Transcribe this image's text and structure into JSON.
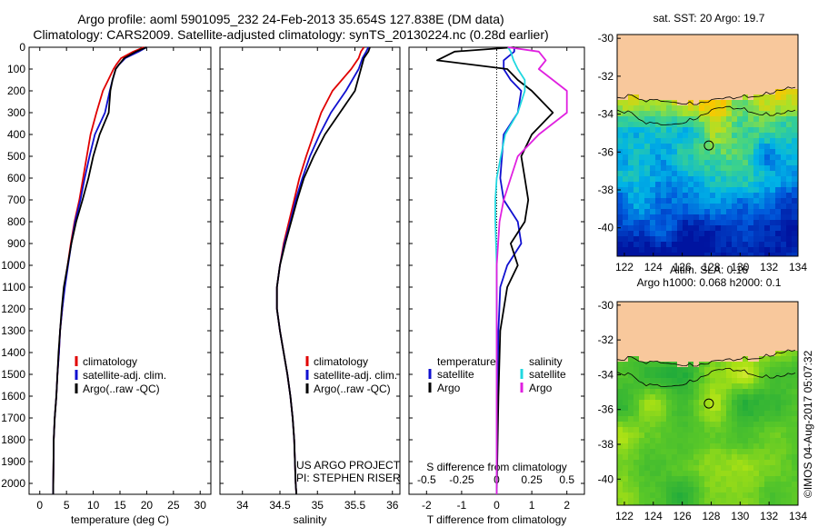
{
  "header": {
    "line1": "Argo profile: aoml 5901095_232 24-Feb-2013 35.654S 127.838E (DM data)",
    "line2": "Climatology: CARS2009. Satellite-adjusted climatology: synTS_20130224.nc (0.28d earlier)"
  },
  "colors": {
    "climatology": "#e00000",
    "satellite": "#1010d0",
    "argo": "#000000",
    "sal_satellite": "#20d8e0",
    "sal_argo": "#e020e0",
    "land": "#f8c89c"
  },
  "legend_profile": [
    "climatology",
    "satellite-adj. clim.",
    "Argo(..raw -QC)"
  ],
  "legend_diff": {
    "temp_title": "temperature",
    "sal_title": "salinity",
    "temp_items": [
      "satellite",
      "Argo"
    ],
    "sal_items": [
      "satellite",
      "Argo"
    ]
  },
  "credit": {
    "line1": "US ARGO PROJECT",
    "line2": "PI: STEPHEN RISER"
  },
  "watermark": "©IMOS 04-Aug-2017 05:07:32",
  "map1": {
    "title": "sat. SST: 20 Argo: 19.7"
  },
  "map2": {
    "title1": "Altim. SLA: 0.16",
    "title2": "Argo h1000: 0.068 h2000: 0.1"
  },
  "chart_data": [
    {
      "type": "line",
      "xlabel": "temperature (deg C)",
      "xlim": [
        -2,
        32
      ],
      "ylim": [
        2050,
        0
      ],
      "xticks": [
        "0",
        "5",
        "10",
        "15",
        "20",
        "25",
        "30"
      ],
      "yticks": [
        "0",
        "100",
        "200",
        "300",
        "400",
        "500",
        "600",
        "700",
        "800",
        "900",
        "1000",
        "1100",
        "1200",
        "1300",
        "1400",
        "1500",
        "1600",
        "1700",
        "1800",
        "1900",
        "2000"
      ],
      "series": [
        {
          "name": "climatology",
          "x": [
            19.5,
            17.5,
            15.2,
            14.3,
            13.8,
            12.8,
            11.8,
            10.6,
            9.5,
            8.8,
            8.1,
            7.4,
            6.5,
            5.8,
            5.2,
            4.6,
            4.2,
            3.8,
            3.6,
            3.3,
            3.1,
            2.8,
            2.6,
            2.5
          ],
          "y": [
            0,
            20,
            50,
            80,
            100,
            150,
            200,
            300,
            400,
            500,
            600,
            700,
            800,
            900,
            1000,
            1100,
            1200,
            1300,
            1400,
            1500,
            1600,
            1700,
            1800,
            2050
          ]
        },
        {
          "name": "satellite-adj. clim.",
          "x": [
            20.0,
            18.5,
            16.0,
            14.8,
            14.2,
            13.6,
            13.1,
            12.2,
            10.3,
            9.3,
            8.4,
            7.6,
            6.6,
            5.9,
            5.3,
            4.7,
            4.2,
            3.8,
            3.6,
            3.3,
            3.1,
            2.8,
            2.6,
            2.5
          ],
          "y": [
            0,
            20,
            50,
            80,
            100,
            150,
            200,
            300,
            400,
            500,
            600,
            700,
            800,
            900,
            1000,
            1100,
            1200,
            1300,
            1400,
            1500,
            1600,
            1700,
            1800,
            2050
          ]
        },
        {
          "name": "Argo(..raw -QC)",
          "x": [
            20.0,
            18.0,
            15.8,
            14.8,
            14.2,
            13.6,
            13.2,
            12.9,
            11.2,
            10.0,
            9.1,
            8.0,
            6.8,
            5.9,
            5.2,
            4.5,
            4.1,
            3.8,
            3.5,
            3.3,
            3.1,
            2.8,
            2.6,
            2.5
          ],
          "y": [
            0,
            20,
            50,
            80,
            100,
            150,
            200,
            300,
            400,
            500,
            600,
            700,
            800,
            900,
            1000,
            1100,
            1200,
            1300,
            1400,
            1500,
            1600,
            1700,
            1800,
            2050
          ]
        }
      ]
    },
    {
      "type": "line",
      "xlabel": "salinity",
      "xlim": [
        33.7,
        36.1
      ],
      "ylim": [
        2050,
        0
      ],
      "xticks": [
        "34",
        "34.5",
        "35",
        "35.5",
        "36"
      ],
      "series": [
        {
          "name": "climatology",
          "x": [
            35.62,
            35.58,
            35.55,
            35.45,
            35.2,
            35.05,
            34.95,
            34.85,
            34.76,
            34.69,
            34.62,
            34.55,
            34.5,
            34.46,
            34.46,
            34.5,
            34.55,
            34.6,
            34.64,
            34.67,
            34.69,
            34.7,
            34.71,
            34.72
          ],
          "y": [
            0,
            20,
            50,
            100,
            200,
            300,
            400,
            500,
            600,
            700,
            800,
            900,
            1000,
            1100,
            1200,
            1300,
            1400,
            1500,
            1600,
            1700,
            1800,
            1900,
            2000,
            2050
          ]
        },
        {
          "name": "satellite-adj. clim.",
          "x": [
            35.68,
            35.65,
            35.6,
            35.55,
            35.38,
            35.18,
            35.03,
            34.9,
            34.8,
            34.71,
            34.64,
            34.56,
            34.5,
            34.46,
            34.46,
            34.5,
            34.55,
            34.6,
            34.64,
            34.67,
            34.69,
            34.7,
            34.71,
            34.72
          ],
          "y": [
            0,
            20,
            50,
            100,
            200,
            300,
            400,
            500,
            600,
            700,
            800,
            900,
            1000,
            1100,
            1200,
            1300,
            1400,
            1500,
            1600,
            1700,
            1800,
            1900,
            2000,
            2050
          ]
        },
        {
          "name": "Argo(..raw -QC)",
          "x": [
            35.7,
            35.68,
            35.62,
            35.58,
            35.5,
            35.3,
            35.1,
            34.95,
            34.82,
            34.73,
            34.65,
            34.57,
            34.5,
            34.46,
            34.46,
            34.5,
            34.55,
            34.6,
            34.64,
            34.67,
            34.69,
            34.7,
            34.71,
            34.72
          ],
          "y": [
            0,
            20,
            50,
            100,
            200,
            300,
            400,
            500,
            600,
            700,
            800,
            900,
            1000,
            1100,
            1200,
            1300,
            1400,
            1500,
            1600,
            1700,
            1800,
            1900,
            2000,
            2050
          ]
        }
      ]
    },
    {
      "type": "line",
      "xlabel": "T difference from climatology",
      "x2label": "S difference from climatology",
      "xlim": [
        -2.5,
        2.5
      ],
      "ylim": [
        2050,
        0
      ],
      "xticks": [
        "-2",
        "-1",
        "0",
        "1",
        "2"
      ],
      "x2ticks": [
        "-0.5",
        "-0.25",
        "0",
        "0.25",
        "0.5"
      ],
      "series": [
        {
          "name": "temperature satellite",
          "x": [
            0.5,
            0.5,
            0.2,
            0.2,
            0.4,
            0.7,
            0.6,
            0.2,
            0.15,
            0.1,
            0.2,
            0.6,
            0.7,
            0.3,
            0.1,
            0.05,
            0.02,
            0.0
          ],
          "y": [
            0,
            20,
            60,
            100,
            150,
            200,
            300,
            400,
            500,
            600,
            700,
            800,
            900,
            1000,
            1100,
            1300,
            1600,
            2050
          ]
        },
        {
          "name": "temperature Argo",
          "x": [
            0.5,
            -1.2,
            -1.7,
            0.3,
            0.6,
            1.0,
            1.6,
            1.0,
            0.7,
            0.8,
            0.9,
            0.8,
            0.4,
            0.6,
            0.3,
            0.1,
            0.05,
            0.0
          ],
          "y": [
            0,
            20,
            60,
            100,
            150,
            200,
            300,
            400,
            500,
            600,
            700,
            800,
            900,
            1000,
            1100,
            1300,
            1600,
            2050
          ]
        },
        {
          "name": "salinity satellite",
          "x": [
            0.08,
            0.1,
            0.12,
            0.15,
            0.2,
            0.2,
            0.15,
            0.06,
            0.03,
            0.0,
            -0.01,
            -0.01,
            0.0,
            0.0,
            0.0,
            0.0,
            0.0
          ],
          "y": [
            0,
            20,
            60,
            100,
            150,
            200,
            300,
            400,
            500,
            600,
            700,
            800,
            1000,
            1200,
            1400,
            1700,
            2050
          ]
        },
        {
          "name": "salinity Argo",
          "x": [
            0.08,
            0.3,
            0.35,
            0.3,
            0.4,
            0.5,
            0.5,
            0.3,
            0.15,
            0.1,
            0.05,
            0.02,
            0.0,
            0.0,
            0.0,
            0.0,
            0.0
          ],
          "y": [
            0,
            20,
            60,
            100,
            150,
            200,
            300,
            400,
            500,
            600,
            700,
            800,
            1000,
            1200,
            1400,
            1700,
            2050
          ]
        }
      ]
    },
    {
      "type": "heatmap",
      "title": "sat. SST: 20 Argo: 19.7",
      "xticks": [
        "122",
        "124",
        "126",
        "128",
        "130",
        "132",
        "134"
      ],
      "yticks": [
        "-30",
        "-32",
        "-34",
        "-36",
        "-38",
        "-40"
      ],
      "xlim": [
        121.5,
        134
      ],
      "ylim": [
        -41.5,
        -29.8
      ],
      "marker": {
        "lon": 127.838,
        "lat": -35.654
      }
    },
    {
      "type": "heatmap",
      "title": "Altim. SLA: 0.16",
      "xticks": [
        "122",
        "124",
        "126",
        "128",
        "130",
        "132",
        "134"
      ],
      "yticks": [
        "-30",
        "-32",
        "-34",
        "-36",
        "-38",
        "-40"
      ],
      "xlim": [
        121.5,
        134
      ],
      "ylim": [
        -41.5,
        -29.8
      ],
      "marker": {
        "lon": 127.838,
        "lat": -35.654
      }
    }
  ]
}
